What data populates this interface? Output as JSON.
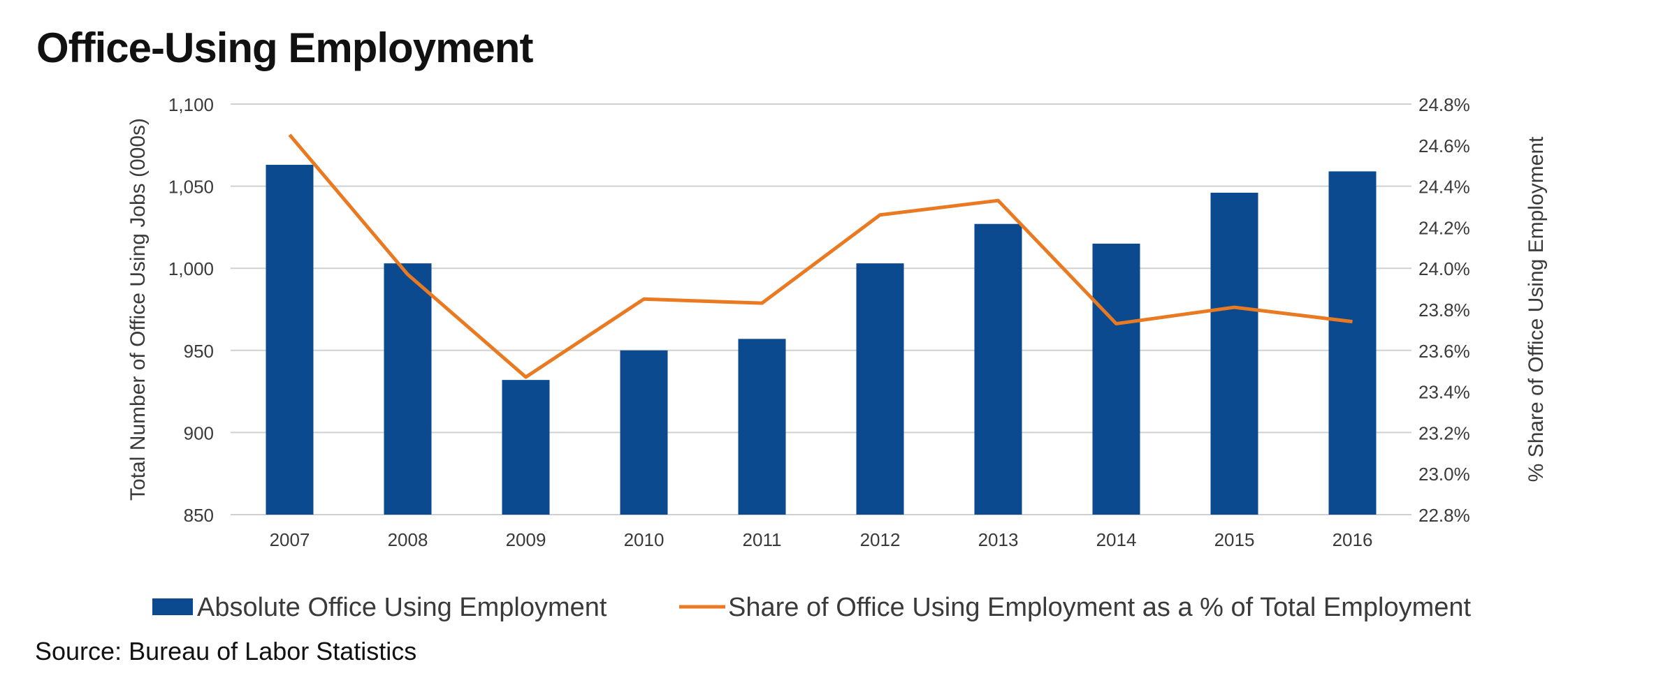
{
  "chart_data": {
    "type": "bar",
    "title": "Office-Using Employment",
    "categories": [
      "2007",
      "2008",
      "2009",
      "2010",
      "2011",
      "2012",
      "2013",
      "2014",
      "2015",
      "2016"
    ],
    "series": [
      {
        "name": "Absolute Office Using Employment",
        "type": "bar",
        "axis": "left",
        "color": "#0b4a8f",
        "values": [
          1063,
          1003,
          932,
          950,
          957,
          1003,
          1027,
          1015,
          1046,
          1059
        ]
      },
      {
        "name": "Share of Office Using Employment as a % of Total Employment",
        "type": "line",
        "axis": "right",
        "color": "#ea7a22",
        "values": [
          24.65,
          23.97,
          23.47,
          23.85,
          23.83,
          24.26,
          24.33,
          23.73,
          23.81,
          23.74
        ]
      }
    ],
    "ylabel": "Total Number of Office Using Jobs (000s)",
    "ylabel_right": "% Share of Office Using Employment",
    "ylim": [
      850,
      1100
    ],
    "ylim_right": [
      22.8,
      24.8
    ],
    "yticks": [
      "850",
      "900",
      "950",
      "1,000",
      "1,050",
      "1,100"
    ],
    "yticks_right": [
      "22.8%",
      "23.0%",
      "23.2%",
      "23.4%",
      "23.6%",
      "23.8%",
      "24.0%",
      "24.2%",
      "24.4%",
      "24.6%",
      "24.8%"
    ],
    "grid": true,
    "legend_position": "bottom"
  },
  "source": "Source: Bureau of Labor Statistics"
}
